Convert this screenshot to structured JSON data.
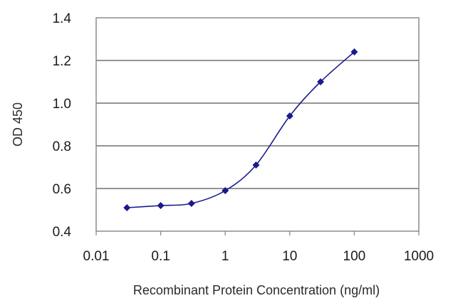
{
  "chart_data": {
    "type": "line",
    "title": "",
    "xlabel": "Recombinant Protein Concentration (ng/ml)",
    "ylabel": "OD 450",
    "x_scale": "log",
    "xlim": [
      0.01,
      1000
    ],
    "ylim": [
      0.4,
      1.4
    ],
    "x_ticks": [
      "0.01",
      "0.1",
      "1",
      "10",
      "100",
      "1000"
    ],
    "y_ticks": [
      "0.4",
      "0.6",
      "0.8",
      "1.0",
      "1.2",
      "1.4"
    ],
    "grid": "horizontal",
    "legend": "none",
    "series": [
      {
        "x": [
          0.03,
          0.1,
          0.3,
          1,
          3,
          10,
          30,
          100
        ],
        "y": [
          0.51,
          0.52,
          0.53,
          0.59,
          0.71,
          0.94,
          1.1,
          1.24
        ],
        "color": "#1a1a8c",
        "marker": "diamond"
      }
    ]
  }
}
